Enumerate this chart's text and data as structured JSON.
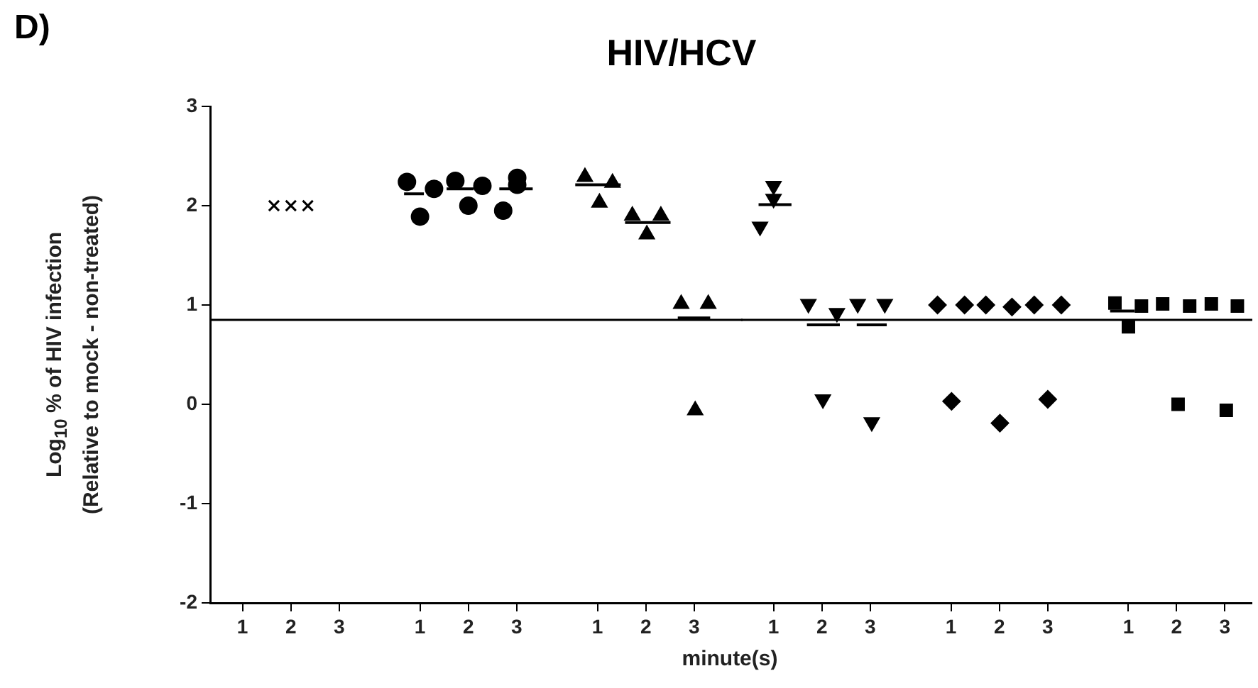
{
  "chart_data": [
    {
      "type": "scatter",
      "ylabel": "Log$_{10}$ % of HIV infection\n(Relative to mock - non-treated)",
      "annotations": [
        "D)"
      ],
      "xlim": [
        0.33,
        4.0
      ],
      "xticks": [
        1,
        2,
        3
      ],
      "ylim": [
        -2,
        3
      ],
      "yticks": [
        -2,
        -1,
        0,
        1,
        2,
        3
      ],
      "grid": false,
      "legend": false,
      "ref_lines": [
        {
          "axis": "y",
          "value": 0.85,
          "color": "#000000",
          "line_style": "solid"
        }
      ],
      "series": [
        {
          "color": "#000000",
          "marker": "cross",
          "x": [
            1.65,
            2.0,
            2.35
          ],
          "values": [
            2.0,
            2.0,
            2.0
          ]
        }
      ]
    },
    {
      "type": "scatter",
      "xlim": [
        0.33,
        4.0
      ],
      "xticks": [
        1,
        2,
        3
      ],
      "ylim": [
        -2,
        3
      ],
      "yticks": [
        -2,
        -1,
        0,
        1,
        2,
        3
      ],
      "tick_labels": "x",
      "grid": false,
      "legend": false,
      "ref_lines": [
        {
          "axis": "y",
          "value": 0.85,
          "color": "#000000",
          "line_style": "solid"
        }
      ],
      "series": [
        {
          "color": "#000000",
          "marker": "circle",
          "x": [
            0.73,
            1.0,
            1.29,
            1.73,
            2.0,
            2.29,
            2.72,
            3.01,
            3.01
          ],
          "values": [
            2.24,
            1.89,
            2.17,
            2.25,
            2.0,
            2.2,
            1.95,
            2.28,
            2.21
          ]
        },
        {
          "type": "line",
          "color": "#000000",
          "marker": "none",
          "x": [
            0.67,
            1.08,
            null,
            1.55,
            2.11,
            null,
            2.64,
            3.33
          ],
          "values": [
            2.12,
            2.12,
            null,
            2.17,
            2.17,
            null,
            2.17,
            2.17
          ]
        }
      ]
    },
    {
      "type": "scatter",
      "title": "HIV/HCV",
      "xlabel": "minute(s)",
      "xlim": [
        0.33,
        4.0
      ],
      "xticks": [
        1,
        2,
        3
      ],
      "ylim": [
        -2,
        3
      ],
      "yticks": [
        -2,
        -1,
        0,
        1,
        2,
        3
      ],
      "tick_labels": "x",
      "grid": false,
      "legend": false,
      "ref_lines": [
        {
          "axis": "y",
          "value": 0.85,
          "color": "#000000",
          "line_style": "solid"
        }
      ],
      "series": [
        {
          "color": "#000000",
          "marker": "triangle",
          "x": [
            0.74,
            1.04,
            1.31,
            1.72,
            2.02,
            2.31,
            2.73,
            3.02,
            3.29
          ],
          "values": [
            2.29,
            2.03,
            2.23,
            1.9,
            1.71,
            1.9,
            1.01,
            -0.06,
            1.01
          ]
        },
        {
          "type": "line",
          "color": "#000000",
          "marker": "none",
          "x": [
            0.54,
            1.48,
            null,
            1.57,
            2.51,
            null,
            2.66,
            3.33
          ],
          "values": [
            2.21,
            2.21,
            null,
            1.83,
            1.83,
            null,
            0.87,
            0.87
          ]
        }
      ]
    },
    {
      "type": "scatter",
      "xlim": [
        0.33,
        4.0
      ],
      "xticks": [
        1,
        2,
        3
      ],
      "ylim": [
        -2,
        3
      ],
      "yticks": [
        -2,
        -1,
        0,
        1,
        2,
        3
      ],
      "tick_labels": "x",
      "grid": false,
      "legend": false,
      "ref_lines": [
        {
          "axis": "y",
          "value": 0.85,
          "color": "#000000",
          "line_style": "solid"
        }
      ],
      "series": [
        {
          "color": "#000000",
          "marker": "triangle-down",
          "x": [
            0.72,
            1.0,
            1.0,
            1.72,
            2.02,
            2.31,
            2.74,
            3.03,
            3.3
          ],
          "values": [
            1.79,
            2.2,
            2.07,
            1.01,
            0.05,
            0.92,
            1.01,
            -0.18,
            1.01
          ]
        },
        {
          "type": "line",
          "color": "#000000",
          "marker": "none",
          "x": [
            0.69,
            1.37,
            null,
            1.69,
            2.37,
            null,
            2.72,
            3.34
          ],
          "values": [
            2.01,
            2.01,
            null,
            0.8,
            0.8,
            null,
            0.8,
            0.8
          ]
        }
      ]
    },
    {
      "type": "scatter",
      "xlim": [
        0.33,
        4.0
      ],
      "xticks": [
        1,
        2,
        3
      ],
      "ylim": [
        -2,
        3
      ],
      "yticks": [
        -2,
        -1,
        0,
        1,
        2,
        3
      ],
      "tick_labels": "x",
      "grid": false,
      "legend": false,
      "ref_lines": [
        {
          "axis": "y",
          "value": 0.85,
          "color": "#000000",
          "line_style": "solid"
        }
      ],
      "series": [
        {
          "color": "#000000",
          "marker": "diamond",
          "x": [
            0.72,
            1.01,
            1.28,
            1.72,
            2.01,
            2.26,
            2.72,
            3.0,
            3.28
          ],
          "values": [
            1.0,
            0.03,
            1.0,
            1.0,
            -0.19,
            0.98,
            1.0,
            0.05,
            1.0
          ]
        }
      ]
    },
    {
      "type": "scatter",
      "xlim": [
        0.33,
        3.57
      ],
      "xticks": [
        1,
        2,
        3
      ],
      "ylim": [
        -2,
        3
      ],
      "yticks": [
        -2,
        -1,
        0,
        1,
        2,
        3
      ],
      "tick_labels": "x",
      "grid": false,
      "legend": false,
      "ref_lines": [
        {
          "axis": "y",
          "value": 0.85,
          "color": "#000000",
          "line_style": "solid"
        }
      ],
      "series": [
        {
          "color": "#000000",
          "marker": "square",
          "x": [
            0.72,
            1.0,
            1.27,
            1.71,
            2.03,
            2.27,
            2.72,
            3.03,
            3.26
          ],
          "values": [
            1.02,
            0.78,
            0.99,
            1.01,
            0.0,
            0.99,
            1.01,
            -0.06,
            0.99
          ]
        },
        {
          "type": "line",
          "color": "#000000",
          "marker": "none",
          "x": [
            0.62,
            1.13
          ],
          "values": [
            0.94,
            0.94
          ]
        }
      ]
    }
  ]
}
